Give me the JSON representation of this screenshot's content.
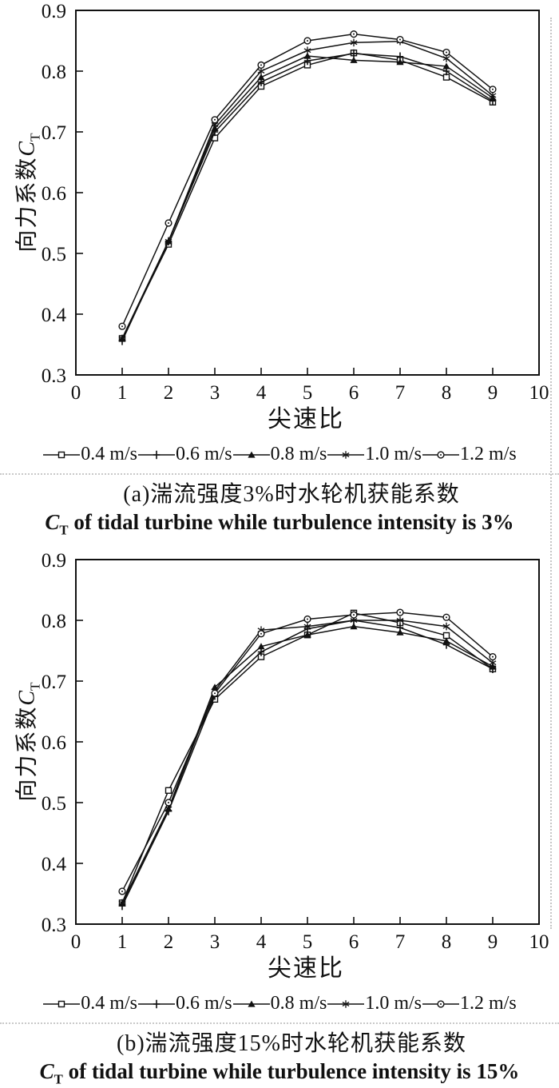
{
  "figure": {
    "background": "#ffffff",
    "ink": "#111111"
  },
  "chart_data": [
    {
      "id": "chart-a",
      "type": "line",
      "caption_zh": "(a)湍流强度3%时水轮机获能系数",
      "caption_en": {
        "sym": "C",
        "sub": "T",
        "rest": " of tidal turbine while turbulence intensity is 3%"
      },
      "xlabel": "尖速比",
      "ylabel": {
        "zh": "向力系数",
        "sym": "C",
        "sub": "T"
      },
      "xlim": [
        0,
        10
      ],
      "ylim": [
        0.3,
        0.9
      ],
      "x_ticks": [
        "0",
        "1",
        "2",
        "3",
        "4",
        "5",
        "6",
        "7",
        "8",
        "9",
        "10"
      ],
      "y_ticks": [
        "0.3",
        "0.4",
        "0.5",
        "0.6",
        "0.7",
        "0.8",
        "0.9"
      ],
      "grid": false,
      "legend_position": "bottom",
      "x": [
        1,
        2,
        3,
        4,
        5,
        6,
        7,
        8,
        9
      ],
      "series": [
        {
          "name": "0.4 m/s",
          "marker": "square",
          "values": [
            0.36,
            0.515,
            0.69,
            0.775,
            0.81,
            0.83,
            0.818,
            0.79,
            0.749
          ]
        },
        {
          "name": "0.6 m/s",
          "marker": "plus",
          "values": [
            0.356,
            0.52,
            0.7,
            0.782,
            0.817,
            0.829,
            0.824,
            0.8,
            0.751
          ]
        },
        {
          "name": "0.8 m/s",
          "marker": "triangle",
          "values": [
            0.36,
            0.52,
            0.706,
            0.79,
            0.825,
            0.818,
            0.815,
            0.808,
            0.756
          ]
        },
        {
          "name": "1.0 m/s",
          "marker": "asterisk",
          "values": [
            0.36,
            0.52,
            0.712,
            0.8,
            0.834,
            0.847,
            0.849,
            0.821,
            0.76
          ]
        },
        {
          "name": "1.2 m/s",
          "marker": "circle",
          "values": [
            0.38,
            0.55,
            0.72,
            0.81,
            0.85,
            0.861,
            0.852,
            0.831,
            0.77
          ]
        }
      ]
    },
    {
      "id": "chart-b",
      "type": "line",
      "caption_zh": "(b)湍流强度15%时水轮机获能系数",
      "caption_en": {
        "sym": "C",
        "sub": "T",
        "rest": " of tidal turbine while turbulence intensity is 15%"
      },
      "xlabel": "尖速比",
      "ylabel": {
        "zh": "向力系数",
        "sym": "C",
        "sub": "T"
      },
      "xlim": [
        0,
        10
      ],
      "ylim": [
        0.3,
        0.9
      ],
      "x_ticks": [
        "0",
        "1",
        "2",
        "3",
        "4",
        "5",
        "6",
        "7",
        "8",
        "9",
        "10"
      ],
      "y_ticks": [
        "0.3",
        "0.4",
        "0.5",
        "0.6",
        "0.7",
        "0.8",
        "0.9"
      ],
      "grid": false,
      "legend_position": "bottom",
      "x": [
        1,
        2,
        3,
        4,
        5,
        6,
        7,
        8,
        9
      ],
      "series": [
        {
          "name": "0.4 m/s",
          "marker": "square",
          "values": [
            0.335,
            0.52,
            0.67,
            0.74,
            0.776,
            0.812,
            0.796,
            0.775,
            0.72
          ]
        },
        {
          "name": "0.6 m/s",
          "marker": "plus",
          "values": [
            0.33,
            0.486,
            0.676,
            0.748,
            0.786,
            0.8,
            0.788,
            0.76,
            0.72
          ]
        },
        {
          "name": "0.8 m/s",
          "marker": "triangle",
          "values": [
            0.334,
            0.49,
            0.69,
            0.757,
            0.776,
            0.79,
            0.78,
            0.766,
            0.724
          ]
        },
        {
          "name": "1.0 m/s",
          "marker": "asterisk",
          "values": [
            0.335,
            0.49,
            0.684,
            0.784,
            0.79,
            0.8,
            0.8,
            0.79,
            0.73
          ]
        },
        {
          "name": "1.2 m/s",
          "marker": "circle",
          "values": [
            0.354,
            0.5,
            0.68,
            0.778,
            0.802,
            0.809,
            0.813,
            0.805,
            0.74
          ]
        }
      ]
    }
  ]
}
